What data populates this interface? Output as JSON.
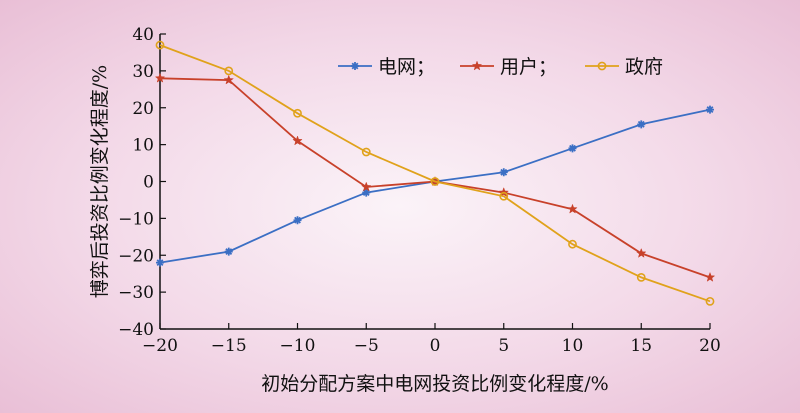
{
  "chart_data": {
    "type": "line",
    "xlabel": "初始分配方案中电网投资比例变化程度/%",
    "ylabel": "博弈后投资比例变化程度/%",
    "xlim": [
      -20,
      20
    ],
    "ylim": [
      -40,
      40
    ],
    "x": [
      -20,
      -15,
      -10,
      -5,
      0,
      5,
      10,
      15,
      20
    ],
    "x_ticks": [
      "−20",
      "−15",
      "−10",
      "−5",
      "0",
      "5",
      "10",
      "15",
      "20"
    ],
    "y_ticks": [
      "−40",
      "−30",
      "−20",
      "−10",
      "0",
      "10",
      "20",
      "30",
      "40"
    ],
    "y_tick_values": [
      -40,
      -30,
      -20,
      -10,
      0,
      10,
      20,
      30,
      40
    ],
    "legend_position": "top-right",
    "grid": false,
    "series": [
      {
        "name": "电网；",
        "color": "#3b6fc4",
        "marker": "asterisk",
        "values": [
          -22,
          -19,
          -10.5,
          -3,
          0,
          2.5,
          9,
          15.5,
          19.5
        ]
      },
      {
        "name": "用户；",
        "color": "#c8412a",
        "marker": "star",
        "values": [
          28,
          27.5,
          11,
          -1.5,
          0,
          -3,
          -7.5,
          -19.5,
          -26
        ]
      },
      {
        "name": "政府",
        "color": "#e0a21b",
        "marker": "circle",
        "values": [
          37,
          30,
          18.5,
          8,
          0,
          -4,
          -17,
          -26,
          -32.5
        ]
      }
    ]
  }
}
